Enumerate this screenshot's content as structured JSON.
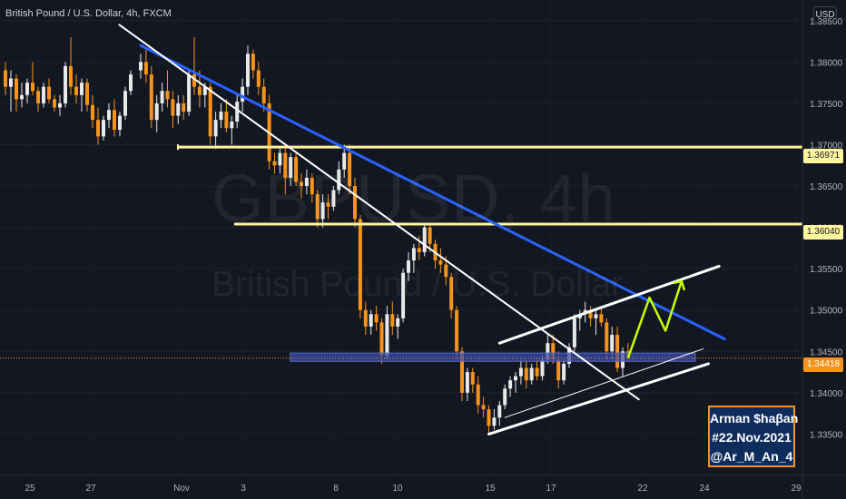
{
  "header": {
    "title": "British Pound / U.S. Dollar, 4h, FXCM"
  },
  "watermark": {
    "symbol": "GBPUSD, 4h",
    "description": "British Pound / U.S. Dollar"
  },
  "currency_label": "USD",
  "author": {
    "line1": "Arman $haβan",
    "line2": "#22.Nov.2021",
    "line3": "@Ar_M_An_4"
  },
  "price_tags": {
    "upper_zone": "1.36971",
    "lower_zone": "1.36040",
    "current": "1.34418"
  },
  "colors": {
    "background": "#131722",
    "up": "#e8e8e8",
    "down": "#f7931a",
    "zone_line": "#fff59d",
    "trendline_blue": "#2962ff",
    "projection": "#c6ff00",
    "support_box": "#3949ab"
  },
  "chart_data": {
    "type": "candlestick",
    "symbol": "GBPUSD",
    "timeframe": "4h",
    "x_ticks": [
      "25",
      "27",
      "Nov",
      "3",
      "8",
      "10",
      "15",
      "17",
      "22",
      "24",
      "29"
    ],
    "y_ticks": [
      "1.38500",
      "1.38000",
      "1.37500",
      "1.37000",
      "1.36500",
      "1.36000",
      "1.35500",
      "1.35000",
      "1.34500",
      "1.34000",
      "1.33500"
    ],
    "ylim": [
      1.33,
      1.3875
    ],
    "y_tick_values": [
      1.385,
      1.38,
      1.375,
      1.37,
      1.365,
      1.36,
      1.355,
      1.35,
      1.345,
      1.34,
      1.335
    ],
    "horizontal_levels": [
      1.36971,
      1.3604
    ],
    "current_price": 1.34418,
    "support_zone": [
      1.3438,
      1.3448
    ],
    "candles": [
      [
        1.379,
        1.381,
        1.378,
        1.38
      ],
      [
        1.38,
        1.3815,
        1.3775,
        1.3785
      ],
      [
        1.3785,
        1.3795,
        1.372,
        1.373
      ],
      [
        1.373,
        1.376,
        1.3715,
        1.375
      ],
      [
        1.375,
        1.3775,
        1.374,
        1.3765
      ],
      [
        1.3765,
        1.379,
        1.3745,
        1.3755
      ],
      [
        1.3755,
        1.3765,
        1.372,
        1.3735
      ],
      [
        1.3735,
        1.376,
        1.3725,
        1.375
      ],
      [
        1.375,
        1.376,
        1.373,
        1.374
      ],
      [
        1.374,
        1.379,
        1.3735,
        1.3785
      ],
      [
        1.3785,
        1.383,
        1.376,
        1.377
      ],
      [
        1.377,
        1.379,
        1.3745,
        1.376
      ],
      [
        1.376,
        1.3775,
        1.3745,
        1.377
      ],
      [
        1.377,
        1.3775,
        1.37,
        1.371
      ],
      [
        1.371,
        1.374,
        1.3695,
        1.373
      ],
      [
        1.373,
        1.375,
        1.372,
        1.374
      ],
      [
        1.374,
        1.3755,
        1.3715,
        1.372
      ],
      [
        1.372,
        1.3735,
        1.37,
        1.3728
      ],
      [
        1.3728,
        1.376,
        1.372,
        1.3752
      ],
      [
        1.3752,
        1.378,
        1.374,
        1.377
      ],
      [
        1.377,
        1.382,
        1.376,
        1.381
      ],
      [
        1.381,
        1.3815,
        1.378,
        1.379
      ],
      [
        1.379,
        1.38,
        1.376,
        1.377
      ],
      [
        1.377,
        1.378,
        1.374,
        1.375
      ],
      [
        1.375,
        1.376,
        1.367,
        1.368
      ],
      [
        1.368,
        1.369,
        1.3665,
        1.3675
      ],
      [
        1.3675,
        1.3695,
        1.3665,
        1.369
      ],
      [
        1.369,
        1.3695,
        1.364,
        1.366
      ],
      [
        1.366,
        1.369,
        1.365,
        1.3685
      ],
      [
        1.3685,
        1.369,
        1.365,
        1.3655
      ],
      [
        1.3655,
        1.3665,
        1.3635,
        1.365
      ],
      [
        1.365,
        1.367,
        1.364,
        1.366
      ],
      [
        1.366,
        1.3665,
        1.363,
        1.364
      ],
      [
        1.364,
        1.3645,
        1.36,
        1.361
      ],
      [
        1.361,
        1.364,
        1.36,
        1.363
      ],
      [
        1.363,
        1.364,
        1.361,
        1.3625
      ],
      [
        1.3625,
        1.365,
        1.362,
        1.3645
      ],
      [
        1.3645,
        1.368,
        1.364,
        1.367
      ],
      [
        1.367,
        1.37,
        1.366,
        1.369
      ],
      [
        1.369,
        1.37,
        1.364,
        1.365
      ],
      [
        1.365,
        1.366,
        1.36,
        1.361
      ],
      [
        1.361,
        1.3615,
        1.349,
        1.35
      ],
      [
        1.35,
        1.351,
        1.347,
        1.348
      ],
      [
        1.348,
        1.35,
        1.347,
        1.3495
      ],
      [
        1.3495,
        1.3505,
        1.3475,
        1.3485
      ],
      [
        1.3485,
        1.349,
        1.3435,
        1.3445
      ],
      [
        1.3445,
        1.3505,
        1.344,
        1.3495
      ],
      [
        1.3495,
        1.351,
        1.347,
        1.348
      ],
      [
        1.348,
        1.3495,
        1.3465,
        1.349
      ],
      [
        1.349,
        1.355,
        1.3485,
        1.3545
      ],
      [
        1.3545,
        1.357,
        1.3535,
        1.356
      ],
      [
        1.356,
        1.358,
        1.3545,
        1.3575
      ],
      [
        1.3575,
        1.359,
        1.356,
        1.357
      ],
      [
        1.357,
        1.3605,
        1.3565,
        1.36
      ],
      [
        1.36,
        1.3605,
        1.357,
        1.358
      ],
      [
        1.358,
        1.3585,
        1.355,
        1.356
      ],
      [
        1.356,
        1.3575,
        1.3545,
        1.3555
      ],
      [
        1.3555,
        1.3565,
        1.353,
        1.354
      ],
      [
        1.354,
        1.3545,
        1.349,
        1.35
      ],
      [
        1.35,
        1.3505,
        1.344,
        1.345
      ],
      [
        1.345,
        1.3455,
        1.339,
        1.34
      ],
      [
        1.34,
        1.343,
        1.339,
        1.3425
      ],
      [
        1.3425,
        1.343,
        1.34,
        1.341
      ],
      [
        1.341,
        1.342,
        1.3375,
        1.3385
      ],
      [
        1.3385,
        1.3395,
        1.337,
        1.338
      ],
      [
        1.338,
        1.3385,
        1.335,
        1.336
      ],
      [
        1.336,
        1.338,
        1.3355,
        1.337
      ],
      [
        1.337,
        1.339,
        1.336,
        1.3385
      ],
      [
        1.3385,
        1.341,
        1.338,
        1.3405
      ],
      [
        1.3405,
        1.342,
        1.3395,
        1.3415
      ],
      [
        1.3415,
        1.3425,
        1.34,
        1.342
      ],
      [
        1.342,
        1.344,
        1.341,
        1.343
      ],
      [
        1.343,
        1.344,
        1.3405,
        1.3415
      ],
      [
        1.3415,
        1.3435,
        1.341,
        1.343
      ],
      [
        1.343,
        1.344,
        1.3415,
        1.342
      ],
      [
        1.342,
        1.3445,
        1.3415,
        1.344
      ],
      [
        1.344,
        1.347,
        1.3435,
        1.346
      ],
      [
        1.346,
        1.347,
        1.3435,
        1.344
      ],
      [
        1.344,
        1.345,
        1.3405,
        1.3415
      ],
      [
        1.3415,
        1.344,
        1.341,
        1.3435
      ],
      [
        1.3435,
        1.346,
        1.343,
        1.3455
      ],
      [
        1.3455,
        1.3495,
        1.345,
        1.349
      ],
      [
        1.349,
        1.35,
        1.3475,
        1.3495
      ],
      [
        1.3495,
        1.351,
        1.3485,
        1.35
      ],
      [
        1.35,
        1.3505,
        1.348,
        1.349
      ],
      [
        1.349,
        1.35,
        1.347,
        1.3495
      ],
      [
        1.3495,
        1.3505,
        1.348,
        1.3485
      ],
      [
        1.3485,
        1.349,
        1.344,
        1.345
      ],
      [
        1.345,
        1.348,
        1.344,
        1.347
      ],
      [
        1.347,
        1.348,
        1.3425,
        1.343
      ],
      [
        1.343,
        1.3455,
        1.342,
        1.345
      ],
      [
        1.345,
        1.346,
        1.3438,
        1.3442
      ]
    ],
    "trendlines": [
      {
        "name": "blue-resistance",
        "from": [
          0,
          1.382
        ],
        "to": [
          109,
          1.3465
        ]
      },
      {
        "name": "white-descending",
        "from": [
          -4,
          1.3845
        ],
        "to": [
          93,
          1.3392
        ]
      },
      {
        "name": "channel-upper",
        "from": [
          67,
          1.346
        ],
        "to": [
          108,
          1.3553
        ]
      },
      {
        "name": "channel-lower",
        "from": [
          65,
          1.335
        ],
        "to": [
          106,
          1.3435
        ]
      },
      {
        "name": "channel-mid",
        "from": [
          68,
          1.337
        ],
        "to": [
          105,
          1.3453
        ]
      }
    ],
    "projection": [
      [
        91,
        1.3442
      ],
      [
        95,
        1.3515
      ],
      [
        98,
        1.3475
      ],
      [
        101,
        1.3535
      ]
    ]
  }
}
